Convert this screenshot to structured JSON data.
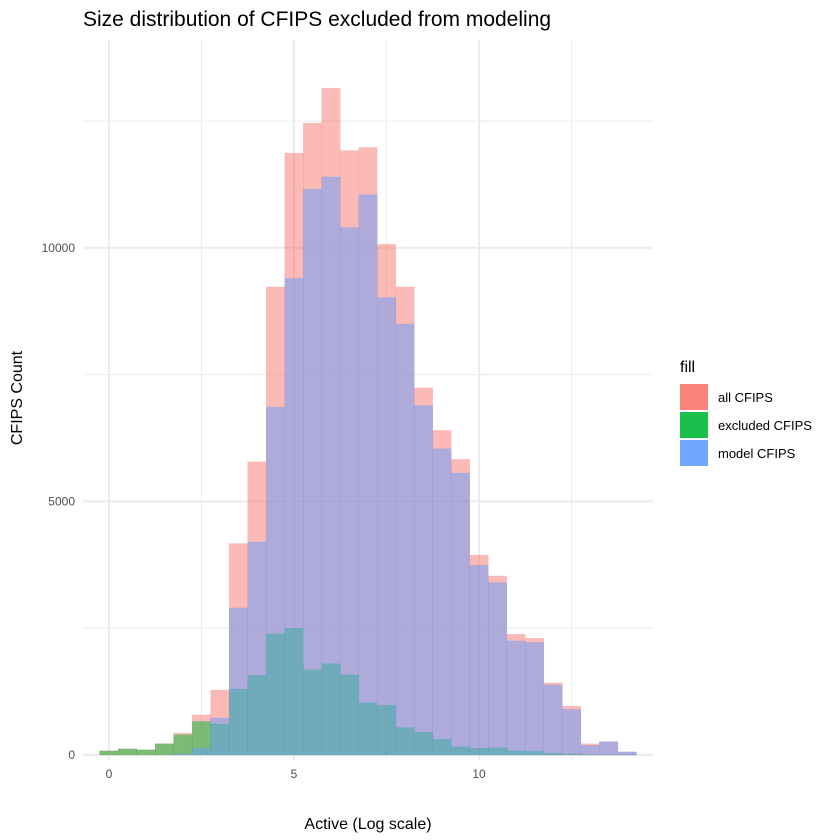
{
  "chart_data": {
    "type": "bar",
    "title": "Size distribution of CFIPS excluded from modeling",
    "xlabel": "Active (Log scale)",
    "ylabel": "CFIPS Count",
    "xlim": [
      -0.7,
      14.7
    ],
    "ylim": [
      -100,
      14100
    ],
    "x_ticks": [
      0,
      5,
      10
    ],
    "y_ticks": [
      0,
      5000,
      10000
    ],
    "grid": true,
    "bin_width": 0.5,
    "bin_centers": [
      0,
      0.5,
      1,
      1.5,
      2,
      2.5,
      3,
      3.5,
      4,
      4.5,
      5,
      5.5,
      6,
      6.5,
      7,
      7.5,
      8,
      8.5,
      9,
      9.5,
      10,
      10.5,
      11,
      11.5,
      12,
      12.5,
      13,
      13.5,
      14
    ],
    "legend": {
      "title": "fill",
      "position": "right"
    },
    "series": [
      {
        "name": "all CFIPS",
        "color": "#F8766D",
        "values": [
          80,
          120,
          100,
          220,
          430,
          790,
          1280,
          4170,
          5780,
          9230,
          11870,
          12460,
          13150,
          11920,
          11980,
          10070,
          9230,
          7240,
          6400,
          5830,
          3940,
          3530,
          2380,
          2300,
          1420,
          960,
          220,
          260,
          60
        ]
      },
      {
        "name": "excluded CFIPS",
        "color": "#00BA38",
        "values": [
          80,
          120,
          100,
          220,
          400,
          660,
          610,
          1300,
          1570,
          2390,
          2500,
          1680,
          1800,
          1580,
          1030,
          980,
          540,
          450,
          310,
          160,
          130,
          140,
          80,
          70,
          30,
          20,
          5,
          5,
          5
        ]
      },
      {
        "name": "model CFIPS",
        "color": "#619CFF",
        "values": [
          0,
          0,
          0,
          0,
          20,
          130,
          730,
          2900,
          4200,
          6860,
          9400,
          11160,
          11400,
          10400,
          11050,
          9020,
          8500,
          6890,
          6040,
          5560,
          3740,
          3400,
          2250,
          2220,
          1380,
          900,
          190,
          260,
          60
        ]
      }
    ]
  }
}
